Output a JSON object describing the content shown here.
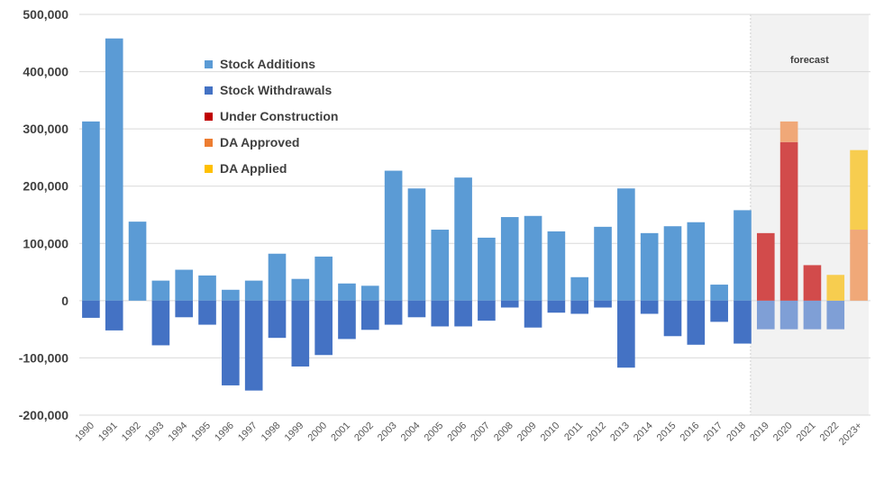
{
  "chart_data": {
    "type": "bar",
    "stacked": true,
    "categories": [
      "1990",
      "1991",
      "1992",
      "1993",
      "1994",
      "1995",
      "1996",
      "1997",
      "1998",
      "1999",
      "2000",
      "2001",
      "2002",
      "2003",
      "2004",
      "2005",
      "2006",
      "2007",
      "2008",
      "2009",
      "2010",
      "2011",
      "2012",
      "2013",
      "2014",
      "2015",
      "2016",
      "2017",
      "2018",
      "2019",
      "2020",
      "2021",
      "2022",
      "2023+"
    ],
    "series": [
      {
        "name": "Stock Additions",
        "color": "#5b9bd5",
        "values": [
          313000,
          458000,
          138000,
          35000,
          54000,
          44000,
          19000,
          35000,
          82000,
          38000,
          77000,
          30000,
          26000,
          227000,
          196000,
          124000,
          215000,
          110000,
          146000,
          148000,
          121000,
          41000,
          129000,
          196000,
          118000,
          130000,
          137000,
          28000,
          158000,
          0,
          0,
          0,
          0,
          0
        ]
      },
      {
        "name": "Stock Withdrawals",
        "color": "#4472c4",
        "values": [
          -30000,
          -52000,
          0,
          -78000,
          -29000,
          -42000,
          -148000,
          -157000,
          -65000,
          -115000,
          -95000,
          -67000,
          -51000,
          -42000,
          -29000,
          -45000,
          -45000,
          -35000,
          -12000,
          -47000,
          -21000,
          -23000,
          -12000,
          -117000,
          -23000,
          -62000,
          -77000,
          -37000,
          -75000,
          -50000,
          -50000,
          -50000,
          -50000,
          0
        ]
      },
      {
        "name": "Under Construction",
        "color": "#c00000",
        "values": [
          0,
          0,
          0,
          0,
          0,
          0,
          0,
          0,
          0,
          0,
          0,
          0,
          0,
          0,
          0,
          0,
          0,
          0,
          0,
          0,
          0,
          0,
          0,
          0,
          0,
          0,
          0,
          0,
          0,
          118000,
          277000,
          62000,
          0,
          0
        ]
      },
      {
        "name": "DA Approved",
        "color": "#ed7d31",
        "values": [
          0,
          0,
          0,
          0,
          0,
          0,
          0,
          0,
          0,
          0,
          0,
          0,
          0,
          0,
          0,
          0,
          0,
          0,
          0,
          0,
          0,
          0,
          0,
          0,
          0,
          0,
          0,
          0,
          0,
          0,
          36000,
          0,
          0,
          124000
        ]
      },
      {
        "name": "DA Applied",
        "color": "#ffc000",
        "values": [
          0,
          0,
          0,
          0,
          0,
          0,
          0,
          0,
          0,
          0,
          0,
          0,
          0,
          0,
          0,
          0,
          0,
          0,
          0,
          0,
          0,
          0,
          0,
          0,
          0,
          0,
          0,
          0,
          0,
          0,
          0,
          0,
          45000,
          139000
        ]
      }
    ],
    "ylim": [
      -200000,
      500000
    ],
    "yticks": [
      500000,
      400000,
      300000,
      200000,
      100000,
      0,
      -100000,
      -200000
    ],
    "ytick_labels": [
      "500,000",
      "400,000",
      "300,000",
      "200,000",
      "100,000",
      "0",
      "-100,000",
      "-200,000"
    ],
    "forecast": {
      "label": "forecast",
      "start_index": 29,
      "end_index": 33
    },
    "grid": true,
    "legend_position": "top-left-inside",
    "title": "",
    "xlabel": "",
    "ylabel": ""
  }
}
